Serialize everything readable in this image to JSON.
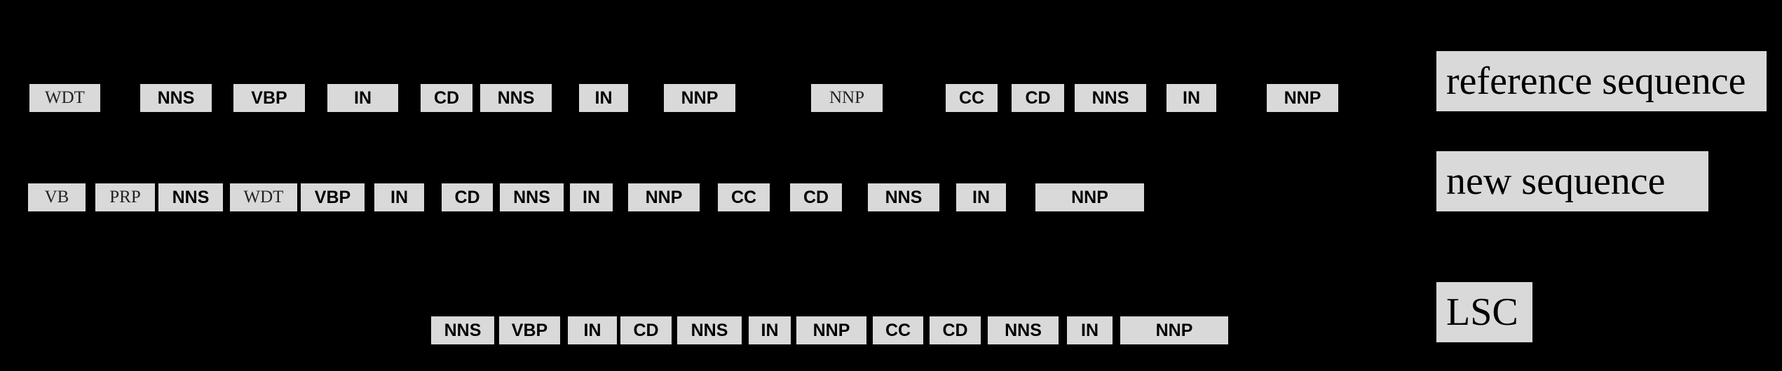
{
  "legend": {
    "reference_label": "reference sequence",
    "new_label": "new sequence",
    "lsc_label": "LSC"
  },
  "reference_sequence": [
    "WDT",
    "NNS",
    "VBP",
    "IN",
    "CD",
    "NNS",
    "IN",
    "NNP",
    "NNP",
    "CC",
    "CD",
    "NNS",
    "IN",
    "NNP"
  ],
  "new_sequence": [
    "VB",
    "PRP",
    "NNS",
    "WDT",
    "VBP",
    "IN",
    "CD",
    "NNS",
    "IN",
    "NNP",
    "CC",
    "CD",
    "NNS",
    "IN",
    "NNP"
  ],
  "lsc_sequence": [
    "NNS",
    "VBP",
    "IN",
    "CD",
    "NNS",
    "IN",
    "NNP",
    "CC",
    "CD",
    "NNS",
    "IN",
    "NNP"
  ],
  "colors": {
    "background": "#000000",
    "box_fill": "#d9d9d9",
    "text": "#000000"
  }
}
